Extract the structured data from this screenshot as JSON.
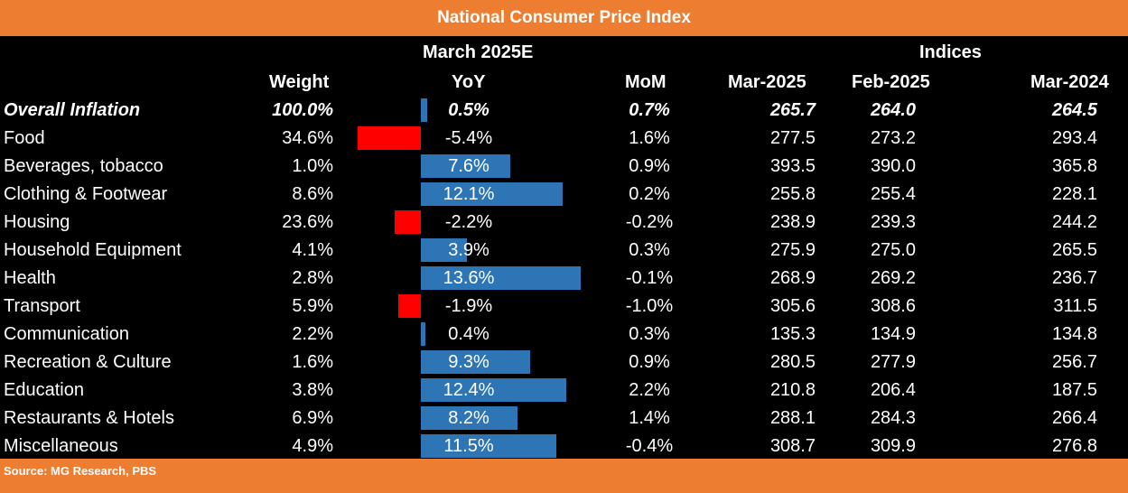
{
  "title": "National Consumer Price Index",
  "source": "Source: MG Research, PBS",
  "group_headers": {
    "march": "March 2025E",
    "indices": "Indices"
  },
  "columns": {
    "weight": "Weight",
    "yoy": "YoY",
    "mom": "MoM",
    "mar2025": "Mar-2025",
    "feb2025": "Feb-2025",
    "mar2024": "Mar-2024"
  },
  "colors": {
    "positive_bar": "#2E75B6",
    "negative_bar": "#FF0000",
    "accent": "#ED7D31"
  },
  "chart_data": {
    "type": "table",
    "title": "National Consumer Price Index",
    "rows": [
      {
        "category": "Overall Inflation",
        "weight": "100.0%",
        "yoy": 0.5,
        "yoy_label": "0.5%",
        "mom": "0.7%",
        "mar2025": "265.7",
        "feb2025": "264.0",
        "mar2024": "264.5"
      },
      {
        "category": "Food",
        "weight": "34.6%",
        "yoy": -5.4,
        "yoy_label": "-5.4%",
        "mom": "1.6%",
        "mar2025": "277.5",
        "feb2025": "273.2",
        "mar2024": "293.4"
      },
      {
        "category": "Beverages, tobacco",
        "weight": "1.0%",
        "yoy": 7.6,
        "yoy_label": "7.6%",
        "mom": "0.9%",
        "mar2025": "393.5",
        "feb2025": "390.0",
        "mar2024": "365.8"
      },
      {
        "category": "Clothing & Footwear",
        "weight": "8.6%",
        "yoy": 12.1,
        "yoy_label": "12.1%",
        "mom": "0.2%",
        "mar2025": "255.8",
        "feb2025": "255.4",
        "mar2024": "228.1"
      },
      {
        "category": "Housing",
        "weight": "23.6%",
        "yoy": -2.2,
        "yoy_label": "-2.2%",
        "mom": "-0.2%",
        "mar2025": "238.9",
        "feb2025": "239.3",
        "mar2024": "244.2"
      },
      {
        "category": "Household Equipment",
        "weight": "4.1%",
        "yoy": 3.9,
        "yoy_label": "3.9%",
        "mom": "0.3%",
        "mar2025": "275.9",
        "feb2025": "275.0",
        "mar2024": "265.5"
      },
      {
        "category": "Health",
        "weight": "2.8%",
        "yoy": 13.6,
        "yoy_label": "13.6%",
        "mom": "-0.1%",
        "mar2025": "268.9",
        "feb2025": "269.2",
        "mar2024": "236.7"
      },
      {
        "category": "Transport",
        "weight": "5.9%",
        "yoy": -1.9,
        "yoy_label": "-1.9%",
        "mom": "-1.0%",
        "mar2025": "305.6",
        "feb2025": "308.6",
        "mar2024": "311.5"
      },
      {
        "category": "Communication",
        "weight": "2.2%",
        "yoy": 0.4,
        "yoy_label": "0.4%",
        "mom": "0.3%",
        "mar2025": "135.3",
        "feb2025": "134.9",
        "mar2024": "134.8"
      },
      {
        "category": "Recreation & Culture",
        "weight": "1.6%",
        "yoy": 9.3,
        "yoy_label": "9.3%",
        "mom": "0.9%",
        "mar2025": "280.5",
        "feb2025": "277.9",
        "mar2024": "256.7"
      },
      {
        "category": "Education",
        "weight": "3.8%",
        "yoy": 12.4,
        "yoy_label": "12.4%",
        "mom": "2.2%",
        "mar2025": "210.8",
        "feb2025": "206.4",
        "mar2024": "187.5"
      },
      {
        "category": "Restaurants & Hotels",
        "weight": "6.9%",
        "yoy": 8.2,
        "yoy_label": "8.2%",
        "mom": "1.4%",
        "mar2025": "288.1",
        "feb2025": "284.3",
        "mar2024": "266.4"
      },
      {
        "category": "Miscellaneous",
        "weight": "4.9%",
        "yoy": 11.5,
        "yoy_label": "11.5%",
        "mom": "-0.4%",
        "mar2025": "308.7",
        "feb2025": "309.9",
        "mar2024": "276.8"
      }
    ]
  }
}
